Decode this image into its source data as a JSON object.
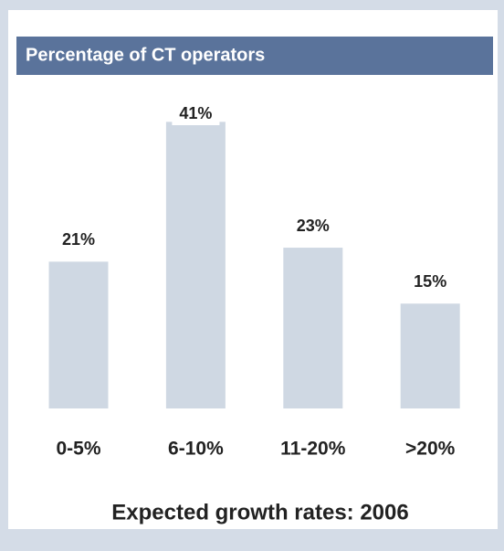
{
  "chart_data": {
    "type": "bar",
    "title": "Percentage of CT operators",
    "categories": [
      "0-5%",
      "6-10%",
      "11-20%",
      ">20%"
    ],
    "values": [
      21,
      41,
      23,
      15
    ],
    "value_labels": [
      "21%",
      "41%",
      "23%",
      "15%"
    ],
    "color": "#cfd8e3",
    "x_label": "Expected growth rates: 2006"
  }
}
